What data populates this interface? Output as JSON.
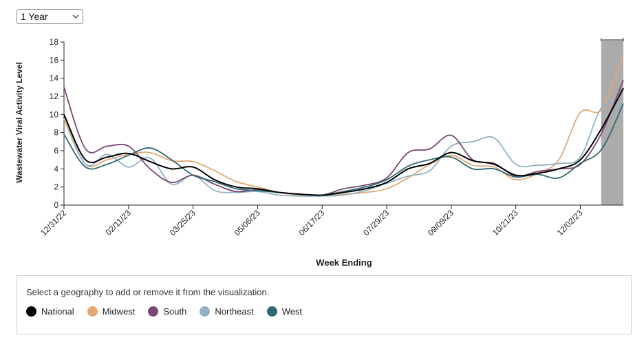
{
  "controls": {
    "range_select": {
      "value": "1 Year"
    }
  },
  "legend": {
    "instruction": "Select a geography to add or remove it from the visualization.",
    "items": [
      {
        "label": "National",
        "color": "#000000"
      },
      {
        "label": "Midwest",
        "color": "#E3A873"
      },
      {
        "label": "South",
        "color": "#7B4673"
      },
      {
        "label": "Northeast",
        "color": "#8FB2C4"
      },
      {
        "label": "West",
        "color": "#2F6A72"
      }
    ]
  },
  "chart_data": {
    "type": "line",
    "title": "",
    "xlabel": "Week Ending",
    "ylabel": "Wastewater Viral Activity Level",
    "ylim": [
      0,
      18
    ],
    "yticks": [
      0,
      2,
      4,
      6,
      8,
      10,
      12,
      14,
      16,
      18
    ],
    "x": [
      "2022-12-31",
      "2023-01-14",
      "2023-01-28",
      "2023-02-11",
      "2023-02-25",
      "2023-03-11",
      "2023-03-25",
      "2023-04-08",
      "2023-04-22",
      "2023-05-06",
      "2023-05-20",
      "2023-06-03",
      "2023-06-17",
      "2023-07-01",
      "2023-07-15",
      "2023-07-29",
      "2023-08-12",
      "2023-08-26",
      "2023-09-09",
      "2023-09-23",
      "2023-10-07",
      "2023-10-21",
      "2023-11-04",
      "2023-11-18",
      "2023-12-02",
      "2023-12-16",
      "2023-12-30"
    ],
    "xtick_labels": [
      "12/31/22",
      "02/11/23",
      "03/25/23",
      "05/06/23",
      "06/17/23",
      "07/29/23",
      "09/09/23",
      "10/21/23",
      "12/02/23"
    ],
    "grid": false,
    "highlight_region": {
      "x_start": "2023-12-16",
      "x_end": "2023-12-30"
    },
    "series": [
      {
        "name": "National",
        "color": "#000000",
        "values": [
          10.0,
          5.0,
          5.3,
          5.7,
          4.8,
          4.0,
          4.2,
          2.8,
          2.0,
          1.8,
          1.4,
          1.2,
          1.1,
          1.4,
          1.8,
          2.5,
          4.0,
          4.6,
          5.8,
          4.9,
          4.5,
          3.3,
          3.5,
          4.0,
          5.0,
          8.5,
          12.9
        ]
      },
      {
        "name": "Midwest",
        "color": "#E3A873",
        "values": [
          9.5,
          4.5,
          5.0,
          5.6,
          5.8,
          4.9,
          4.8,
          3.8,
          2.6,
          2.0,
          1.4,
          1.1,
          1.0,
          1.2,
          1.4,
          1.8,
          3.0,
          4.5,
          5.5,
          4.4,
          4.2,
          2.8,
          3.5,
          5.0,
          10.2,
          10.6,
          16.6
        ]
      },
      {
        "name": "South",
        "color": "#7B4673",
        "values": [
          13.0,
          6.2,
          6.5,
          6.5,
          4.0,
          2.5,
          3.3,
          2.3,
          1.5,
          1.7,
          1.4,
          1.2,
          1.1,
          1.8,
          2.2,
          3.0,
          5.8,
          6.2,
          7.7,
          5.0,
          4.6,
          3.2,
          3.7,
          4.0,
          4.5,
          8.0,
          13.8
        ]
      },
      {
        "name": "Northeast",
        "color": "#8FB2C4",
        "values": [
          10.0,
          4.5,
          5.6,
          4.2,
          5.2,
          2.3,
          3.3,
          1.6,
          1.4,
          1.5,
          1.1,
          1.0,
          1.0,
          1.1,
          1.6,
          2.4,
          3.2,
          3.8,
          6.5,
          7.0,
          7.4,
          4.5,
          4.4,
          4.6,
          5.3,
          10.8,
          11.0
        ]
      },
      {
        "name": "West",
        "color": "#2F6A72",
        "values": [
          7.8,
          4.2,
          4.5,
          5.5,
          6.3,
          5.0,
          3.3,
          2.6,
          1.8,
          1.6,
          1.4,
          1.2,
          1.1,
          1.5,
          2.0,
          2.8,
          4.3,
          5.0,
          5.3,
          4.0,
          4.0,
          3.1,
          3.4,
          3.0,
          4.6,
          6.2,
          11.2
        ]
      }
    ]
  }
}
